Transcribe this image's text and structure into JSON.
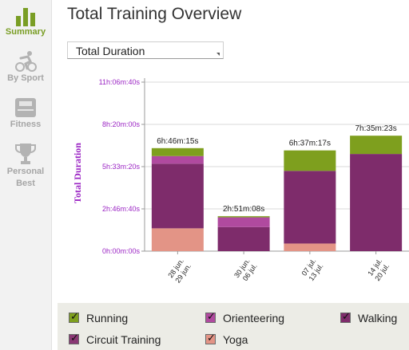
{
  "sidebar": {
    "items": [
      {
        "label": "Summary",
        "icon": "bar-chart-icon",
        "active": true
      },
      {
        "label": "By Sport",
        "icon": "cyclist-icon",
        "active": false
      },
      {
        "label": "Fitness",
        "icon": "scale-icon",
        "active": false
      },
      {
        "label": "Personal Best",
        "label_line1": "Personal",
        "label_line2": "Best",
        "icon": "trophy-icon",
        "active": false
      }
    ]
  },
  "header": {
    "title": "Total Training Overview"
  },
  "metric_select": {
    "value": "Total Duration"
  },
  "colors": {
    "running": "#7e9f1e",
    "orienteering": "#b04a9f",
    "walking": "#7e2c6b",
    "circuit_training": "#8a3874",
    "yoga": "#e39486",
    "accent": "#7a9e25",
    "axis_text": "#9b25c4"
  },
  "chart_data": {
    "type": "bar",
    "stacked": true,
    "ylabel": "Total Duration",
    "y_ticks": [
      "0h:00m:00s",
      "2h:46m:40s",
      "5h:33m:20s",
      "8h:20m:00s",
      "11h:06m:40s"
    ],
    "ylim_seconds": [
      0,
      40000
    ],
    "categories": [
      {
        "line1": "28 jun.",
        "line2": "29 jun."
      },
      {
        "line1": "30 jun.",
        "line2": "06 jul."
      },
      {
        "line1": "07 jul.",
        "line2": "13 jul."
      },
      {
        "line1": "14 jul.",
        "line2": "20 jul."
      }
    ],
    "totals_labels": [
      "6h:46m:15s",
      "2h:51m:08s",
      "6h:37m:17s",
      "7h:35m:23s"
    ],
    "series": [
      {
        "name": "Yoga",
        "color": "#e39486",
        "values_seconds": [
          5400,
          0,
          1800,
          0
        ]
      },
      {
        "name": "Circuit Training",
        "color": "#8a3874",
        "values_seconds": [
          0,
          0,
          0,
          0
        ]
      },
      {
        "name": "Walking",
        "color": "#7e2c6b",
        "values_seconds": [
          15300,
          5700,
          17200,
          23000
        ]
      },
      {
        "name": "Orienteering",
        "color": "#b04a9f",
        "values_seconds": [
          1800,
          2300,
          0,
          0
        ]
      },
      {
        "name": "Running",
        "color": "#7e9f1e",
        "values_seconds": [
          1875,
          268,
          4837,
          4323
        ]
      }
    ],
    "grid": true,
    "legend_placement": "bottom"
  },
  "legend": {
    "items": [
      {
        "label": "Running",
        "color": "#7e9f1e",
        "checked": true
      },
      {
        "label": "Orienteering",
        "color": "#b04a9f",
        "checked": true
      },
      {
        "label": "Walking",
        "color": "#7e2c6b",
        "checked": true
      },
      {
        "label": "Circuit Training",
        "color": "#8a3874",
        "checked": true
      },
      {
        "label": "Yoga",
        "color": "#e39486",
        "checked": true
      }
    ],
    "check_glyph": "✓"
  }
}
